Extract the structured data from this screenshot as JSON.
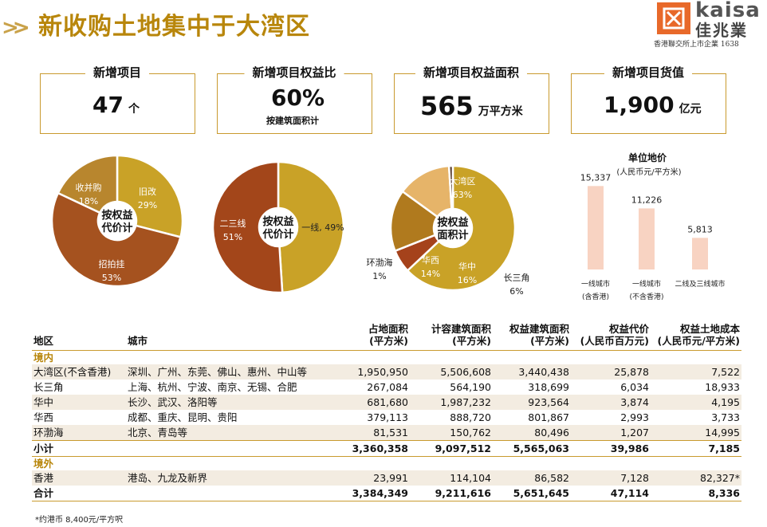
{
  "header": {
    "title": "新收购土地集中于大湾区",
    "logo_en": "kaisa",
    "logo_cn": "佳兆業",
    "logo_sub": "香港聯交所上市企業 1638"
  },
  "kpis": [
    {
      "label": "新增项目",
      "value": "47",
      "unit": "个",
      "sub": ""
    },
    {
      "label": "新增项目权益比",
      "value": "60%",
      "unit": "",
      "sub": "按建筑面积计"
    },
    {
      "label": "新增项目权益面积",
      "value": "565",
      "unit": "万平方米",
      "sub": ""
    },
    {
      "label": "新增项目货值",
      "value": "1,900",
      "unit": "亿元",
      "sub": ""
    }
  ],
  "chart_data": [
    {
      "type": "pie",
      "title": "按权益代价计",
      "center_lines": [
        "按权益",
        "代价计"
      ],
      "slices": [
        {
          "label": "旧改",
          "value": 29,
          "pct": "29%",
          "color": "#c9a227"
        },
        {
          "label": "招拍挂",
          "value": 53,
          "pct": "53%",
          "color": "#a5521f"
        },
        {
          "label": "收并购",
          "value": 18,
          "pct": "18%",
          "color": "#b8862e"
        }
      ]
    },
    {
      "type": "pie",
      "title": "按权益代价计",
      "center_lines": [
        "按权益",
        "代价计"
      ],
      "slices": [
        {
          "label": "一线",
          "value": 49,
          "pct": "49%",
          "color": "#c9a227"
        },
        {
          "label": "二三线",
          "value": 51,
          "pct": "51%",
          "color": "#a3461a"
        }
      ]
    },
    {
      "type": "pie",
      "title": "按权益面积计",
      "center_lines": [
        "按权益",
        "面积计"
      ],
      "slices": [
        {
          "label": "大湾区",
          "value": 63,
          "pct": "63%",
          "color": "#c9a227"
        },
        {
          "label": "长三角",
          "value": 6,
          "pct": "6%",
          "color": "#a5421b"
        },
        {
          "label": "华中",
          "value": 16,
          "pct": "16%",
          "color": "#b07a1e"
        },
        {
          "label": "华西",
          "value": 14,
          "pct": "14%",
          "color": "#e6b469"
        },
        {
          "label": "环渤海",
          "value": 1,
          "pct": "1%",
          "color": "#5a4033"
        }
      ]
    },
    {
      "type": "bar",
      "title": "单位地价",
      "subtitle": "(人民币元/平方米)",
      "categories": [
        [
          "一线城市",
          "(含香港)"
        ],
        [
          "一线城市",
          "(不含香港)"
        ],
        [
          "二线及三线城市"
        ]
      ],
      "values": [
        15337,
        11226,
        5813
      ],
      "value_labels": [
        "15,337",
        "11,226",
        "5,813"
      ],
      "color": "#f8d3c2",
      "ylim": [
        0,
        18000
      ]
    }
  ],
  "table": {
    "headers": [
      [
        "地区"
      ],
      [
        "城市"
      ],
      [
        "占地面积",
        "(平方米)"
      ],
      [
        "计容建筑面积",
        "(平方米)"
      ],
      [
        "权益建筑面积",
        "(平方米)"
      ],
      [
        "权益代价",
        "(人民币百万元)"
      ],
      [
        "权益土地成本",
        "(人民币元/平方米)"
      ]
    ],
    "section_domestic": "境内",
    "domestic_rows": [
      [
        "大湾区(不含香港)",
        "深圳、广州、东莞、佛山、惠州、中山等",
        "1,950,950",
        "5,506,608",
        "3,440,438",
        "25,878",
        "7,522"
      ],
      [
        "长三角",
        "上海、杭州、宁波、南京、无锡、合肥",
        "267,084",
        "564,190",
        "318,699",
        "6,034",
        "18,933"
      ],
      [
        "华中",
        "长沙、武汉、洛阳等",
        "681,680",
        "1,987,232",
        "923,564",
        "3,874",
        "4,195"
      ],
      [
        "华西",
        "成都、重庆、昆明、贵阳",
        "379,113",
        "888,720",
        "801,867",
        "2,993",
        "3,733"
      ],
      [
        "环渤海",
        "北京、青岛等",
        "81,531",
        "150,762",
        "80,496",
        "1,207",
        "14,995"
      ]
    ],
    "subtotal": [
      "小计",
      "",
      "3,360,358",
      "9,097,512",
      "5,565,063",
      "39,986",
      "7,185"
    ],
    "section_overseas": "境外",
    "overseas_rows": [
      [
        "香港",
        "港岛、九龙及新界",
        "23,991",
        "114,104",
        "86,582",
        "7,128",
        "82,327*"
      ]
    ],
    "total": [
      "合计",
      "",
      "3,384,349",
      "9,211,616",
      "5,651,645",
      "47,114",
      "8,336"
    ]
  },
  "footnote": "*约港币 8,400元/平方呎"
}
